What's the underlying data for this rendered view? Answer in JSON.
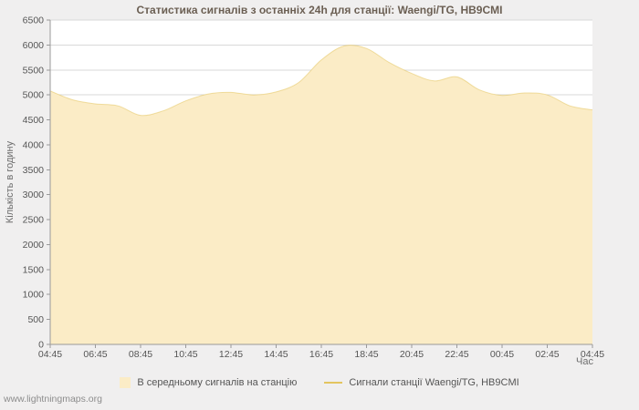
{
  "page": {
    "watermark": "www.lightningmaps.org"
  },
  "chart_data": {
    "type": "area",
    "title": "Статистика сигналів з останніх 24h для станції: Waengi/TG, HB9CMI",
    "xlabel": "Час",
    "ylabel": "Кількість в годину",
    "ylim": [
      0,
      6500
    ],
    "y_tick_step": 500,
    "grid": "horizontal",
    "legend_position": "bottom",
    "x_tick_labels": [
      "04:45",
      "06:45",
      "08:45",
      "10:45",
      "12:45",
      "14:45",
      "16:45",
      "18:45",
      "20:45",
      "22:45",
      "00:45",
      "02:45",
      "04:45"
    ],
    "x_hours_offset": [
      0,
      1,
      2,
      3,
      4,
      5,
      6,
      7,
      8,
      9,
      10,
      11,
      12,
      13,
      14,
      15,
      16,
      17,
      18,
      19,
      20,
      21,
      22,
      23,
      24
    ],
    "series": [
      {
        "name": "В середньому сигналів на станцію",
        "type": "area",
        "color": "#fbecc6",
        "values": [
          5080,
          4900,
          4820,
          4780,
          4590,
          4680,
          4880,
          5020,
          5050,
          5000,
          5060,
          5250,
          5700,
          5980,
          5930,
          5650,
          5430,
          5280,
          5360,
          5100,
          4990,
          5040,
          5000,
          4780,
          4700
        ]
      },
      {
        "name": "Сигнали станції Waengi/TG, HB9CMI",
        "type": "line",
        "color": "#e3c55f",
        "values": [
          5080,
          4900,
          4820,
          4780,
          4590,
          4680,
          4880,
          5020,
          5050,
          5000,
          5060,
          5250,
          5700,
          5980,
          5930,
          5650,
          5430,
          5280,
          5360,
          5100,
          4990,
          5040,
          5000,
          4780,
          4700
        ]
      }
    ]
  }
}
